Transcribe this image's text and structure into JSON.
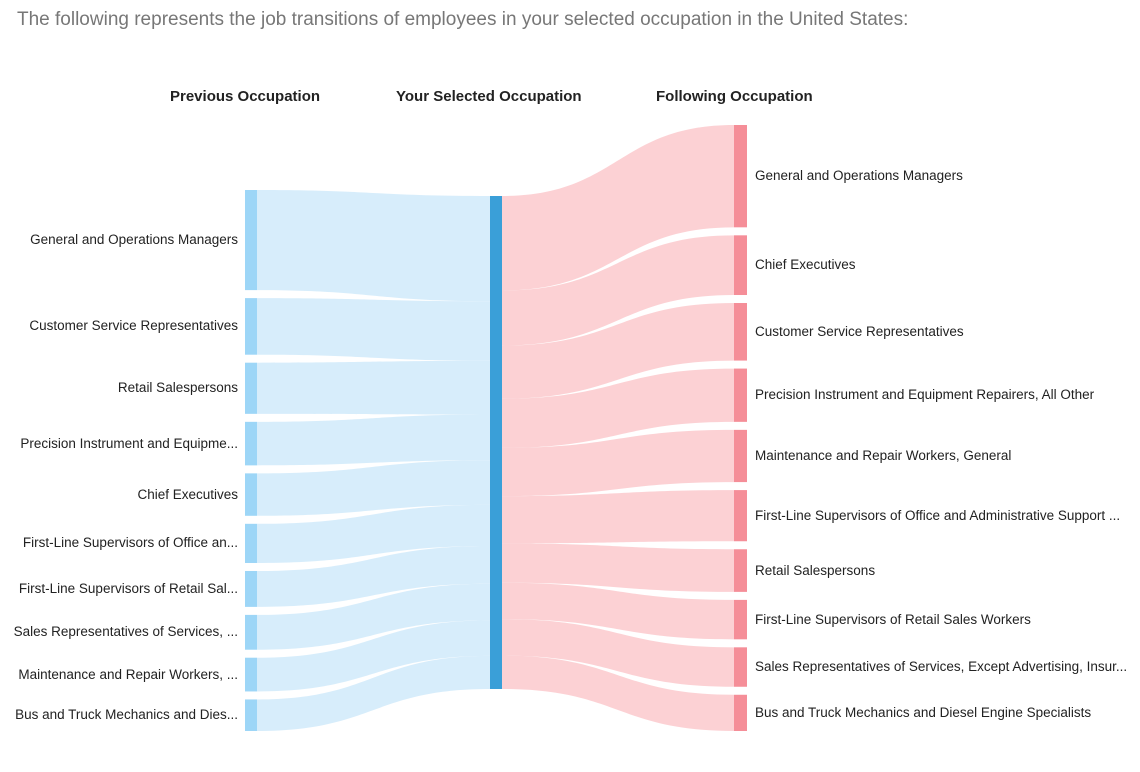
{
  "intro_text": "The following represents the job transitions of employees in your selected occupation in the United States:",
  "chart_data": {
    "type": "sankey",
    "column_headers": {
      "previous": "Previous Occupation",
      "selected": "Your Selected Occupation",
      "following": "Following Occupation"
    },
    "colors": {
      "source_node": "#9dd6f7",
      "source_link": "#d4ebfb",
      "center_node": "#3a9fd8",
      "target_node": "#f58e98",
      "target_link": "#fccccf"
    },
    "previous": [
      {
        "label": "General and Operations Managers",
        "value": 92
      },
      {
        "label": "Customer Service Representatives",
        "value": 52
      },
      {
        "label": "Retail Salespersons",
        "value": 47
      },
      {
        "label": "Precision Instrument and Equipme...",
        "value": 40
      },
      {
        "label": "Chief Executives",
        "value": 39
      },
      {
        "label": "First-Line Supervisors of Office an...",
        "value": 36
      },
      {
        "label": "First-Line Supervisors of Retail Sal...",
        "value": 33
      },
      {
        "label": "Sales Representatives of Services, ...",
        "value": 32
      },
      {
        "label": "Maintenance and Repair Workers, ...",
        "value": 31
      },
      {
        "label": "Bus and Truck Mechanics and Dies...",
        "value": 29
      }
    ],
    "following": [
      {
        "label": "General and Operations Managers",
        "value": 96
      },
      {
        "label": "Chief Executives",
        "value": 56
      },
      {
        "label": "Customer Service Representatives",
        "value": 54
      },
      {
        "label": "Precision Instrument and Equipment Repairers, All Other",
        "value": 50
      },
      {
        "label": "Maintenance and Repair Workers, General",
        "value": 49
      },
      {
        "label": "First-Line Supervisors of Office and Administrative Support ...",
        "value": 48
      },
      {
        "label": "Retail Salespersons",
        "value": 40
      },
      {
        "label": "First-Line Supervisors of Retail Sales Workers",
        "value": 37
      },
      {
        "label": "Sales Representatives of Services, Except Advertising, Insur...",
        "value": 37
      },
      {
        "label": "Bus and Truck Mechanics and Diesel Engine Specialists",
        "value": 34
      }
    ]
  }
}
